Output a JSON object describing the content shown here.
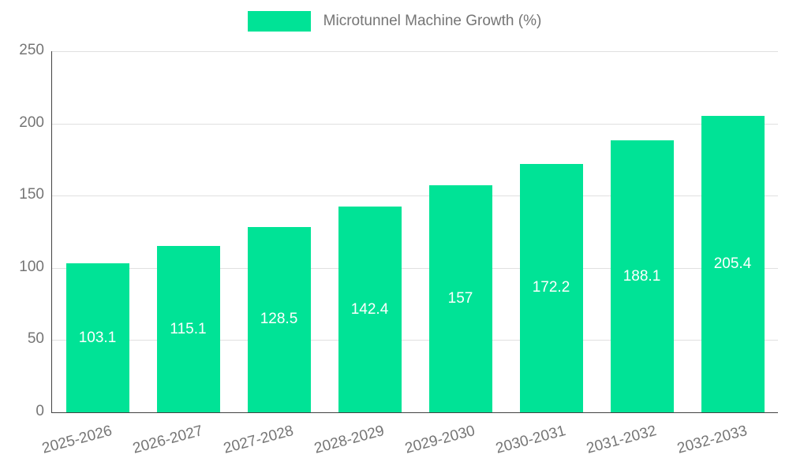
{
  "chart": {
    "legend_label": "Microtunnel Machine Growth (%)"
  },
  "chart_data": {
    "type": "bar",
    "title": "Microtunnel Machine Growth (%)",
    "categories": [
      "2025-2026",
      "2026-2027",
      "2027-2028",
      "2028-2029",
      "2029-2030",
      "2030-2031",
      "2031-2032",
      "2032-2033"
    ],
    "values": [
      103.1,
      115.1,
      128.5,
      142.4,
      157,
      172.2,
      188.1,
      205.4
    ],
    "value_labels": [
      "103.1",
      "115.1",
      "128.5",
      "142.4",
      "157",
      "172.2",
      "188.1",
      "205.4"
    ],
    "xlabel": "",
    "ylabel": "",
    "ylim": [
      0,
      250
    ],
    "ytick_step": 50,
    "ytick_labels": [
      "0",
      "50",
      "100",
      "150",
      "200",
      "250"
    ],
    "grid": true,
    "legend_position": "top",
    "bar_color": "#00e396",
    "value_label_color": "#ffffff",
    "axis_text_color": "#757575",
    "gridline_color": "#e0e0e0"
  }
}
